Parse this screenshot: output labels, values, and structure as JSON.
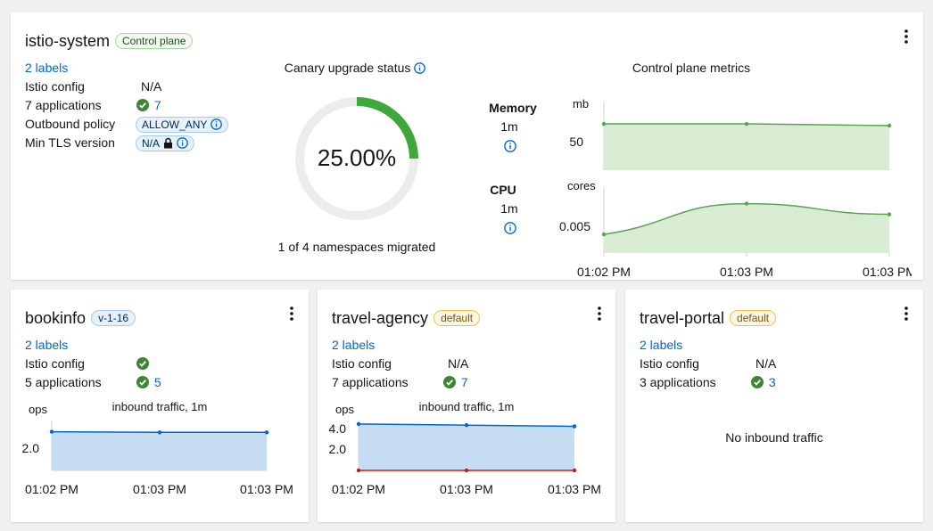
{
  "control_plane": {
    "name": "istio-system",
    "badge": "Control plane",
    "labels_link": "2 labels",
    "istio_config_label": "Istio config",
    "istio_config_value": "N/A",
    "applications_label": "7 applications",
    "applications_count": "7",
    "outbound_policy_label": "Outbound policy",
    "outbound_policy_value": "ALLOW_ANY",
    "min_tls_label": "Min TLS version",
    "min_tls_value": "N/A",
    "canary": {
      "title": "Canary upgrade status",
      "percent_text": "25.00%",
      "percent": 25,
      "caption": "1 of 4 namespaces migrated"
    },
    "metrics": {
      "title": "Control plane metrics",
      "memory_label": "Memory",
      "memory_interval": "1m",
      "memory_unit": "mb",
      "memory_tick": "50",
      "cpu_label": "CPU",
      "cpu_interval": "1m",
      "cpu_unit": "cores",
      "cpu_tick": "0.005",
      "x_ticks": [
        "01:02 PM",
        "01:03 PM",
        "01:03 PM"
      ]
    }
  },
  "namespaces": [
    {
      "name": "bookinfo",
      "badge": "v-1-16",
      "labels_link": "2 labels",
      "istio_config_label": "Istio config",
      "applications_label": "5 applications",
      "applications_count": "5",
      "chart_unit": "ops",
      "chart_title": "inbound traffic, 1m",
      "y_ticks": [
        "2.0"
      ],
      "x_ticks": [
        "01:02 PM",
        "01:03 PM",
        "01:03 PM"
      ]
    },
    {
      "name": "travel-agency",
      "badge": "default",
      "labels_link": "2 labels",
      "istio_config_label": "Istio config",
      "istio_config_value": "N/A",
      "applications_label": "7 applications",
      "applications_count": "7",
      "chart_unit": "ops",
      "chart_title": "inbound traffic, 1m",
      "y_ticks": [
        "4.0",
        "2.0"
      ],
      "x_ticks": [
        "01:02 PM",
        "01:03 PM",
        "01:03 PM"
      ]
    },
    {
      "name": "travel-portal",
      "badge": "default",
      "labels_link": "2 labels",
      "istio_config_label": "Istio config",
      "istio_config_value": "N/A",
      "applications_label": "3 applications",
      "applications_count": "3",
      "no_traffic": "No inbound traffic"
    }
  ],
  "colors": {
    "success": "#3e8635",
    "link": "#0066cc",
    "metric_line": "#5ba352",
    "metric_fill": "#d8ecd3",
    "traffic_line": "#0066cc",
    "traffic_fill": "#c6dcf2",
    "error_line": "#c9190b"
  },
  "chart_data": [
    {
      "type": "area",
      "title": "Control plane metrics",
      "series": [
        {
          "name": "Memory",
          "x": [
            "01:02 PM",
            "01:03 PM",
            "01:03 PM"
          ],
          "values": [
            57,
            57,
            56
          ]
        }
      ],
      "ylabel": "mb",
      "ylim": [
        30,
        70
      ]
    },
    {
      "type": "area",
      "series": [
        {
          "name": "CPU",
          "x": [
            "01:02 PM",
            "01:03 PM",
            "01:03 PM"
          ],
          "values": [
            0.0035,
            0.0061,
            0.0052
          ]
        }
      ],
      "ylabel": "cores",
      "ylim": [
        0.002,
        0.0075
      ]
    },
    {
      "type": "area",
      "title": "inbound traffic, 1m",
      "series": [
        {
          "x": [
            "01:02 PM",
            "01:03 PM",
            "01:03 PM"
          ],
          "values": [
            3.1,
            3.05,
            3.05
          ]
        }
      ],
      "ylabel": "ops",
      "ylim": [
        0,
        4
      ]
    },
    {
      "type": "area",
      "title": "inbound traffic, 1m",
      "series": [
        {
          "x": [
            "01:02 PM",
            "01:03 PM",
            "01:03 PM"
          ],
          "values": [
            4.0,
            3.9,
            3.8
          ]
        },
        {
          "x": [
            "01:02 PM",
            "01:03 PM",
            "01:03 PM"
          ],
          "values": [
            0,
            0,
            0
          ]
        }
      ],
      "ylabel": "ops",
      "ylim": [
        0,
        4.3
      ]
    }
  ]
}
